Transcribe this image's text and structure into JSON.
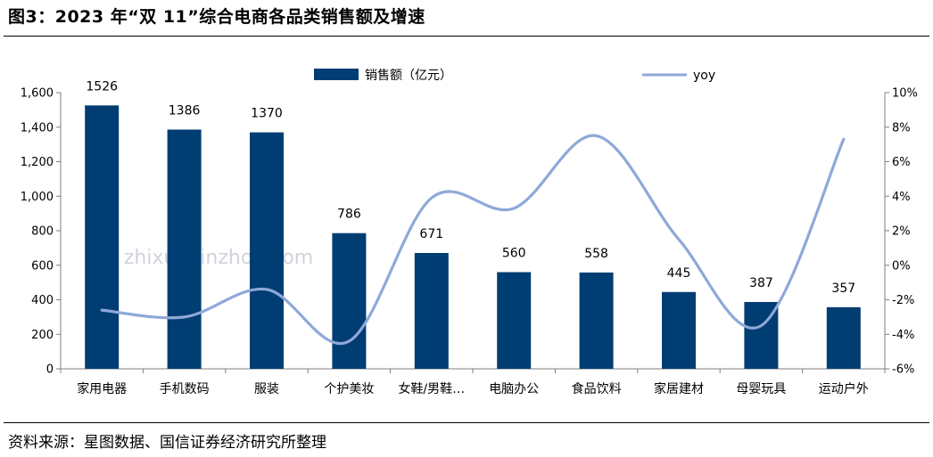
{
  "header": {
    "title": "图3：2023 年“双 11”综合电商各品类销售额及增速"
  },
  "footer": {
    "source": "资料来源：星图数据、国信证券经济研究所整理"
  },
  "watermark": "zhixunxinzhou.com",
  "colors": {
    "bar": "#003D73",
    "line": "#8FA8D8",
    "axis": "#7f7f7f"
  },
  "chart_data": {
    "type": "bar",
    "categories": [
      "家用电器",
      "手机数码",
      "服装",
      "个护美妆",
      "女鞋/男鞋…",
      "电脑办公",
      "食品饮料",
      "家居建材",
      "母婴玩具",
      "运动户外"
    ],
    "series": [
      {
        "name": "销售额（亿元）",
        "type": "bar",
        "axis": "left",
        "values": [
          1526,
          1386,
          1370,
          786,
          671,
          560,
          558,
          445,
          387,
          357
        ]
      },
      {
        "name": "yoy",
        "type": "line",
        "axis": "right",
        "smooth": true,
        "values": [
          -2.6,
          -3.0,
          -1.4,
          -4.4,
          3.9,
          3.3,
          7.5,
          1.5,
          -3.5,
          7.3
        ]
      }
    ],
    "y_left": {
      "lim": [
        0,
        1600
      ],
      "ticks": [
        0,
        200,
        400,
        600,
        800,
        1000,
        1200,
        1400,
        1600
      ],
      "tick_labels": [
        "0",
        "200",
        "400",
        "600",
        "800",
        "1,000",
        "1,200",
        "1,400",
        "1,600"
      ]
    },
    "y_right": {
      "lim": [
        -6,
        10
      ],
      "ticks": [
        -6,
        -4,
        -2,
        0,
        2,
        4,
        6,
        8,
        10
      ],
      "tick_labels": [
        "-6%",
        "-4%",
        "-2%",
        "0%",
        "2%",
        "4%",
        "6%",
        "8%",
        "10%"
      ]
    },
    "data_labels": [
      "1526",
      "1386",
      "1370",
      "786",
      "671",
      "560",
      "558",
      "445",
      "387",
      "357"
    ],
    "legend": {
      "placement": "top",
      "items": [
        "销售额（亿元）",
        "yoy"
      ]
    },
    "grid": false
  }
}
